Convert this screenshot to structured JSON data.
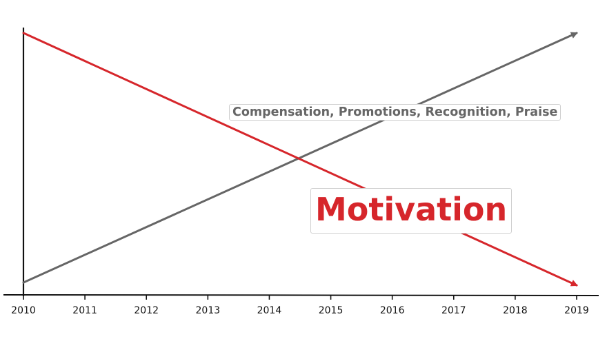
{
  "chart_data": {
    "type": "line",
    "x": [
      2010,
      2011,
      2012,
      2013,
      2014,
      2015,
      2016,
      2017,
      2018,
      2019
    ],
    "xlim": [
      2010,
      2019
    ],
    "ylim": [
      0,
      100
    ],
    "grid": false,
    "series": [
      {
        "name": "Compensation, Promotions, Recognition, Praise",
        "x": [
          2010,
          2019
        ],
        "values": [
          5,
          96
        ],
        "color": "#666666"
      },
      {
        "name": "Motivation",
        "x": [
          2010,
          2019
        ],
        "values": [
          96,
          4
        ],
        "color": "#d6262b"
      }
    ],
    "title": "",
    "xlabel": "",
    "ylabel": ""
  }
}
